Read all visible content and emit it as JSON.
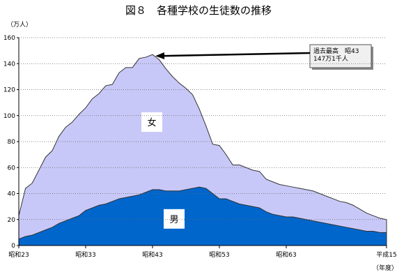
{
  "chart_data": {
    "type": "area",
    "title": "図８　各種学校の生徒数の推移",
    "y_unit": "（万人）",
    "x_unit": "（年度）",
    "ylim": [
      0,
      160
    ],
    "y_ticks": [
      0,
      20,
      40,
      60,
      80,
      100,
      120,
      140,
      160
    ],
    "x_tick_labels": [
      "昭和23",
      "昭和33",
      "昭和43",
      "昭和53",
      "昭和63",
      "平成15"
    ],
    "grid": "horizontal dotted",
    "stacked": true,
    "x": [
      "昭和23",
      "昭和24",
      "昭和25",
      "昭和26",
      "昭和27",
      "昭和28",
      "昭和29",
      "昭和30",
      "昭和31",
      "昭和32",
      "昭和33",
      "昭和34",
      "昭和35",
      "昭和36",
      "昭和37",
      "昭和38",
      "昭和39",
      "昭和40",
      "昭和41",
      "昭和42",
      "昭和43",
      "昭和44",
      "昭和45",
      "昭和46",
      "昭和47",
      "昭和48",
      "昭和49",
      "昭和50",
      "昭和51",
      "昭和52",
      "昭和53",
      "昭和54",
      "昭和55",
      "昭和56",
      "昭和57",
      "昭和58",
      "昭和59",
      "昭和60",
      "昭和61",
      "昭和62",
      "昭和63",
      "平成1",
      "平成2",
      "平成3",
      "平成4",
      "平成5",
      "平成6",
      "平成7",
      "平成8",
      "平成9",
      "平成10",
      "平成11",
      "平成12",
      "平成13",
      "平成14",
      "平成15"
    ],
    "series": [
      {
        "name": "男",
        "color": "#0066cc",
        "values": [
          5,
          7,
          8,
          10,
          12,
          14,
          17,
          19,
          21,
          23,
          27,
          29,
          31,
          32,
          34,
          36,
          37,
          38,
          39,
          41,
          43,
          43,
          42,
          42,
          42,
          43,
          44,
          45,
          44,
          40,
          36,
          36,
          34,
          32,
          31,
          30,
          29,
          26,
          24,
          23,
          22,
          22,
          21,
          20,
          19,
          18,
          17,
          16,
          15,
          14,
          13,
          12,
          11,
          11,
          10,
          10
        ]
      },
      {
        "name": "女",
        "color": "#c8c8f8",
        "values": [
          18,
          37,
          40,
          48,
          56,
          59,
          67,
          72,
          74,
          78,
          79,
          84,
          86,
          91,
          90,
          97,
          100,
          99,
          105,
          104,
          104,
          100,
          94,
          88,
          83,
          78,
          72,
          60,
          48,
          38,
          41,
          34,
          28,
          30,
          29,
          28,
          28,
          25,
          25,
          24,
          24,
          23,
          23,
          23,
          23,
          22,
          21,
          20,
          19,
          19,
          18,
          16,
          14,
          12,
          11,
          10
        ]
      }
    ],
    "annotation": {
      "lines": [
        "過去最高　昭43",
        "147万1千人"
      ],
      "x": "昭和43",
      "y": 147
    }
  }
}
